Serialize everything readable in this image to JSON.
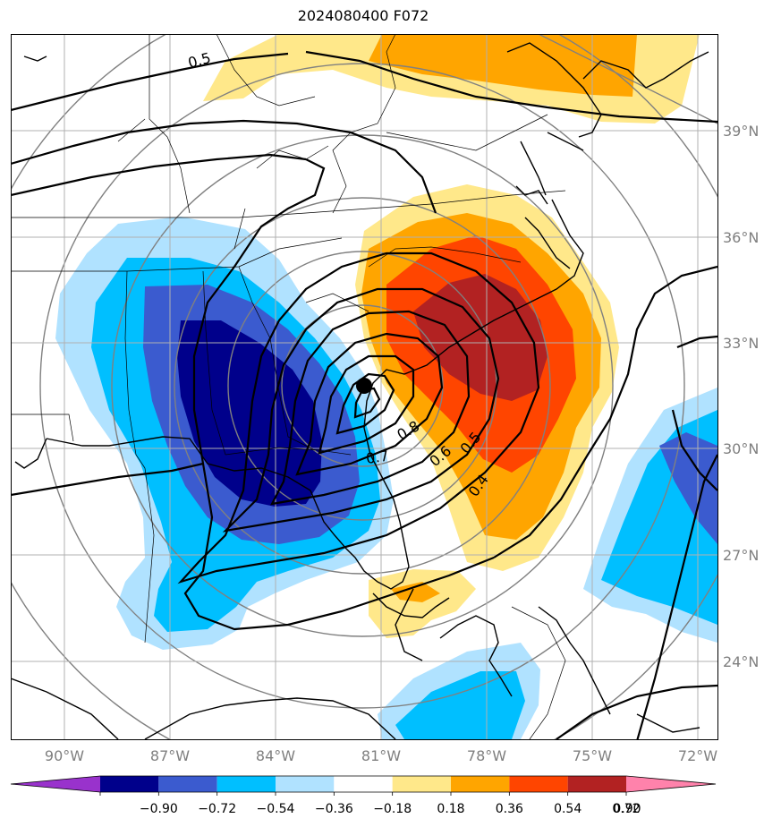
{
  "title": "2024080400 F072",
  "map": {
    "lat_labels": [
      "39°N",
      "36°N",
      "33°N",
      "30°N",
      "27°N",
      "24°N"
    ],
    "lon_labels": [
      "90°W",
      "87°W",
      "84°W",
      "81°W",
      "78°W",
      "75°W",
      "72°W"
    ],
    "contour_labels": [
      "0.5",
      "0.8",
      "0.7",
      "0.6",
      "0.5",
      "0.4"
    ],
    "storm_marker": {
      "lat": 31.7,
      "lon": -81.4
    },
    "colors": {
      "land_line": "#000000",
      "grid": "#b0b0b0",
      "range_ring": "#808080"
    }
  },
  "colorbar": {
    "ticks": [
      "−0.90",
      "−0.72",
      "−0.54",
      "−0.36",
      "−0.18",
      "0.18",
      "0.36",
      "0.54",
      "0.72",
      "0.90"
    ],
    "colors": [
      "#9932cc",
      "#00008b",
      "#3b5bcf",
      "#00bfff",
      "#b0e2ff",
      "#ffffff",
      "#ffe88a",
      "#ffa500",
      "#ff4500",
      "#b22222",
      "#ff82ab"
    ]
  }
}
